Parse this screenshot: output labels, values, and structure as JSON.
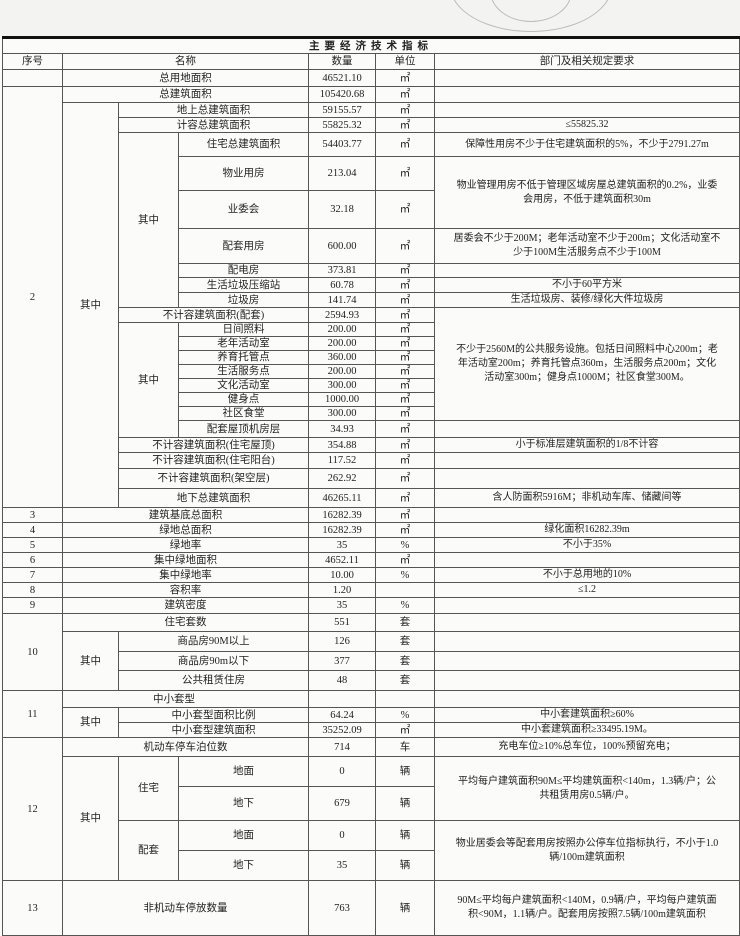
{
  "title": "主要经济技术指标",
  "header": {
    "seq": "序号",
    "name": "名称",
    "qty": "数量",
    "unit": "单位",
    "req": "部门及相关规定要求"
  },
  "labels": {
    "qizhong": "其中",
    "zhuzhai": "住宅",
    "peitao": "配套"
  },
  "rows": [
    {
      "name": "总用地面积",
      "qty": "46521.10",
      "unit": "㎡"
    },
    {
      "seq": "2",
      "name": "总建筑面积",
      "qty": "105420.68",
      "unit": "㎡"
    },
    {
      "name": "地上总建筑面积",
      "qty": "59155.57",
      "unit": "㎡"
    },
    {
      "name": "计容总建筑面积",
      "qty": "55825.32",
      "unit": "㎡",
      "req": "≤55825.32"
    },
    {
      "name": "住宅总建筑面积",
      "qty": "54403.77",
      "unit": "㎡",
      "req": "保障性用房不少于住宅建筑面积的5%，不少于2791.27m"
    },
    {
      "name": "物业用房",
      "qty": "213.04",
      "unit": "㎡",
      "req": "物业管理用房不低于管理区域房屋总建筑面积的0.2%，业委会用房，不低于建筑面积30m"
    },
    {
      "name": "业委会",
      "qty": "32.18",
      "unit": "㎡"
    },
    {
      "name": "配套用房",
      "qty": "600.00",
      "unit": "㎡",
      "req": "居委会不少于200M；老年活动室不少于200m；文化活动室不少于100M生活服务点不少于100M"
    },
    {
      "name": "配电房",
      "qty": "373.81",
      "unit": "㎡"
    },
    {
      "name": "生活垃圾压缩站",
      "qty": "60.78",
      "unit": "㎡",
      "req": "不小于60平方米"
    },
    {
      "name": "垃圾房",
      "qty": "141.74",
      "unit": "㎡",
      "req": "生活垃圾房、装修/绿化大件垃圾房"
    },
    {
      "name": "不计容建筑面积(配套)",
      "qty": "2594.93",
      "unit": "㎡",
      "req": "不少于2560M的公共服务设施。包括日间照料中心200m；老年活动室200m；养育托管点360m，生活服务点200m；文化活动室300m；健身点1000M；社区食堂300M。"
    },
    {
      "name": "日间照料",
      "qty": "200.00",
      "unit": "㎡"
    },
    {
      "name": "老年活动室",
      "qty": "200.00",
      "unit": "㎡"
    },
    {
      "name": "养育托管点",
      "qty": "360.00",
      "unit": "㎡"
    },
    {
      "name": "生活服务点",
      "qty": "200.00",
      "unit": "㎡"
    },
    {
      "name": "文化活动室",
      "qty": "300.00",
      "unit": "㎡"
    },
    {
      "name": "健身点",
      "qty": "1000.00",
      "unit": "㎡"
    },
    {
      "name": "社区食堂",
      "qty": "300.00",
      "unit": "㎡"
    },
    {
      "name": "配套屋顶机房层",
      "qty": "34.93",
      "unit": "㎡"
    },
    {
      "name": "不计容建筑面积(住宅屋顶)",
      "qty": "354.88",
      "unit": "㎡",
      "req": "小于标准层建筑面积的1/8不计容"
    },
    {
      "name": "不计容建筑面积(住宅阳台)",
      "qty": "117.52",
      "unit": "㎡"
    },
    {
      "name": "不计容建筑面积(架空层)",
      "qty": "262.92",
      "unit": "㎡"
    },
    {
      "name": "地下总建筑面积",
      "qty": "46265.11",
      "unit": "㎡",
      "req": "含人防面积5916M；非机动车库、储藏间等"
    },
    {
      "seq": "3",
      "name": "建筑基底总面积",
      "qty": "16282.39",
      "unit": "㎡"
    },
    {
      "seq": "4",
      "name": "绿地总面积",
      "qty": "16282.39",
      "unit": "㎡",
      "req": "绿化面积16282.39m"
    },
    {
      "seq": "5",
      "name": "绿地率",
      "qty": "35",
      "unit": "%",
      "req": "不小于35%"
    },
    {
      "seq": "6",
      "name": "集中绿地面积",
      "qty": "4652.11",
      "unit": "㎡"
    },
    {
      "seq": "7",
      "name": "集中绿地率",
      "qty": "10.00",
      "unit": "%",
      "req": "不小于总用地的10%"
    },
    {
      "seq": "8",
      "name": "容积率",
      "qty": "1.20",
      "req": "≤1.2"
    },
    {
      "seq": "9",
      "name": "建筑密度",
      "qty": "35",
      "unit": "%"
    },
    {
      "seq": "10",
      "name": "住宅套数",
      "qty": "551",
      "unit": "套"
    },
    {
      "name": "商品房90M以上",
      "qty": "126",
      "unit": "套"
    },
    {
      "name": "商品房90m以下",
      "qty": "377",
      "unit": "套"
    },
    {
      "name": "公共租赁住房",
      "qty": "48",
      "unit": "套"
    },
    {
      "seq": "11",
      "name": "中小套型"
    },
    {
      "name": "中小套型面积比例",
      "qty": "64.24",
      "unit": "%",
      "req": "中小套建筑面积≥60%"
    },
    {
      "name": "中小套型建筑面积",
      "qty": "35252.09",
      "unit": "㎡",
      "req": "中小套建筑面积≥33495.19M。"
    },
    {
      "seq": "12",
      "name": "机动车停车泊位数",
      "qty": "714",
      "unit": "车",
      "req": "充电车位≥10%总车位，100%预留充电；"
    },
    {
      "name": "地面",
      "qty": "0",
      "unit": "辆",
      "req": "平均每户建筑面积90M≤平均建筑面积<140m，1.3辆/户；公共租赁用房0.5辆/户。"
    },
    {
      "name": "地下",
      "qty": "679",
      "unit": "辆"
    },
    {
      "name": "地面",
      "qty": "0",
      "unit": "辆",
      "req": "物业居委会等配套用房按照办公停车位指标执行，不小于1.0辆/100m建筑面积"
    },
    {
      "name": "地下",
      "qty": "35",
      "unit": "辆"
    },
    {
      "seq": "13",
      "name": "非机动车停放数量",
      "qty": "763",
      "unit": "辆",
      "req": "90M≤平均每户建筑面积<140M，0.9辆/户，平均每户建筑面积<90M，1.1辆/户。配套用房按照7.5辆/100m建筑面积"
    }
  ]
}
